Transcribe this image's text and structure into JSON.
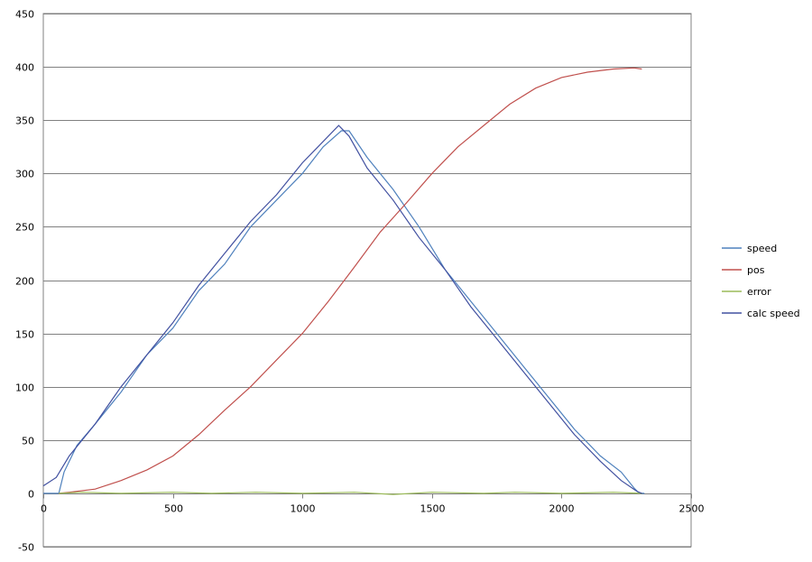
{
  "chart_data": {
    "type": "line",
    "title": "",
    "xlabel": "",
    "ylabel": "",
    "xlim": [
      0,
      2500
    ],
    "ylim": [
      -50,
      450
    ],
    "x_ticks": [
      0,
      500,
      1000,
      1500,
      2000,
      2500
    ],
    "y_ticks": [
      -50,
      0,
      50,
      100,
      150,
      200,
      250,
      300,
      350,
      400,
      450
    ],
    "grid": "horizontal",
    "legend_position": "right",
    "series": [
      {
        "name": "speed",
        "color": "#4F81BD",
        "points": [
          [
            0,
            0
          ],
          [
            60,
            0
          ],
          [
            80,
            20
          ],
          [
            130,
            45
          ],
          [
            200,
            65
          ],
          [
            300,
            95
          ],
          [
            400,
            130
          ],
          [
            500,
            155
          ],
          [
            600,
            190
          ],
          [
            700,
            215
          ],
          [
            800,
            250
          ],
          [
            900,
            275
          ],
          [
            1000,
            300
          ],
          [
            1080,
            325
          ],
          [
            1150,
            340
          ],
          [
            1180,
            340
          ],
          [
            1250,
            315
          ],
          [
            1350,
            285
          ],
          [
            1450,
            250
          ],
          [
            1550,
            210
          ],
          [
            1650,
            180
          ],
          [
            1750,
            150
          ],
          [
            1850,
            120
          ],
          [
            1950,
            90
          ],
          [
            2050,
            60
          ],
          [
            2150,
            35
          ],
          [
            2230,
            20
          ],
          [
            2280,
            5
          ],
          [
            2300,
            0
          ],
          [
            2320,
            0
          ]
        ]
      },
      {
        "name": "pos",
        "color": "#C0504D",
        "points": [
          [
            60,
            0
          ],
          [
            100,
            1
          ],
          [
            200,
            4
          ],
          [
            300,
            12
          ],
          [
            400,
            22
          ],
          [
            500,
            35
          ],
          [
            600,
            55
          ],
          [
            700,
            78
          ],
          [
            800,
            100
          ],
          [
            900,
            125
          ],
          [
            1000,
            150
          ],
          [
            1100,
            180
          ],
          [
            1200,
            212
          ],
          [
            1300,
            245
          ],
          [
            1400,
            272
          ],
          [
            1500,
            300
          ],
          [
            1600,
            325
          ],
          [
            1700,
            345
          ],
          [
            1800,
            365
          ],
          [
            1900,
            380
          ],
          [
            2000,
            390
          ],
          [
            2100,
            395
          ],
          [
            2200,
            398
          ],
          [
            2280,
            399
          ],
          [
            2310,
            398
          ]
        ]
      },
      {
        "name": "error",
        "color": "#9BBB59",
        "points": [
          [
            60,
            0
          ],
          [
            150,
            1
          ],
          [
            300,
            0
          ],
          [
            500,
            1
          ],
          [
            650,
            0
          ],
          [
            820,
            1
          ],
          [
            1000,
            0
          ],
          [
            1200,
            1
          ],
          [
            1350,
            -1
          ],
          [
            1500,
            1
          ],
          [
            1700,
            0
          ],
          [
            1820,
            1
          ],
          [
            2000,
            0
          ],
          [
            2200,
            1
          ],
          [
            2310,
            0
          ]
        ]
      },
      {
        "name": "calc speed",
        "color": "#4150A0",
        "points": [
          [
            0,
            7
          ],
          [
            50,
            15
          ],
          [
            100,
            35
          ],
          [
            150,
            50
          ],
          [
            200,
            65
          ],
          [
            300,
            100
          ],
          [
            400,
            130
          ],
          [
            500,
            160
          ],
          [
            600,
            195
          ],
          [
            700,
            225
          ],
          [
            800,
            255
          ],
          [
            900,
            280
          ],
          [
            1000,
            310
          ],
          [
            1080,
            330
          ],
          [
            1140,
            345
          ],
          [
            1180,
            335
          ],
          [
            1250,
            305
          ],
          [
            1350,
            275
          ],
          [
            1450,
            240
          ],
          [
            1550,
            210
          ],
          [
            1650,
            175
          ],
          [
            1750,
            145
          ],
          [
            1850,
            115
          ],
          [
            1950,
            85
          ],
          [
            2050,
            55
          ],
          [
            2150,
            30
          ],
          [
            2230,
            12
          ],
          [
            2290,
            2
          ],
          [
            2310,
            0
          ]
        ]
      }
    ]
  }
}
